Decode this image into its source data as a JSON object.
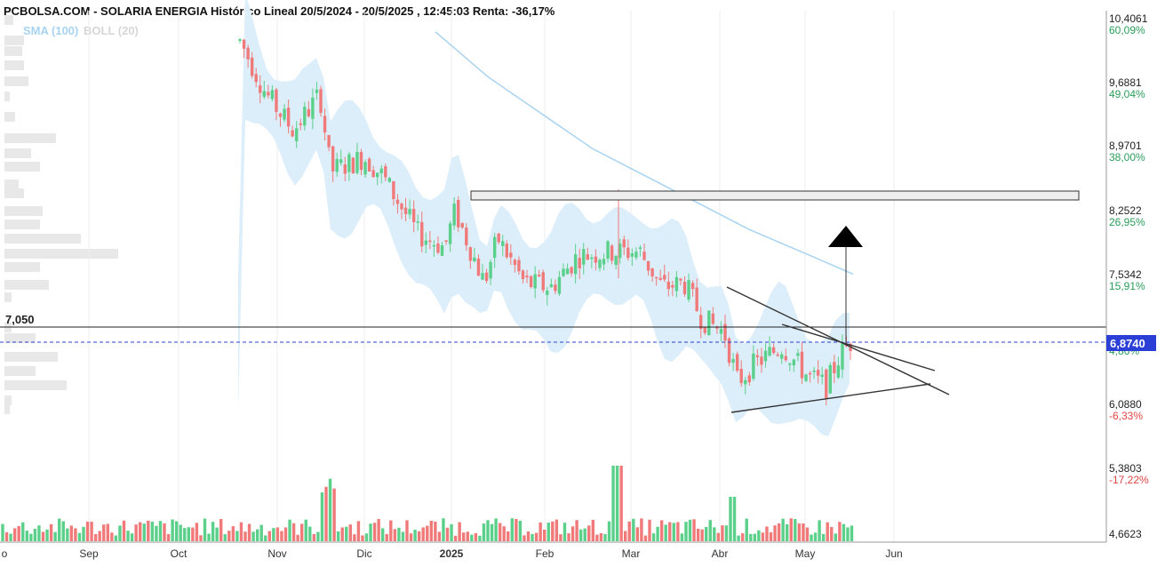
{
  "header": {
    "title": "PCBOLSA.COM - SOLARIA ENERGIA Histórico Lineal 20/5/2024 - 20/5/2025 , 12:45:03 Renta: -36,17%",
    "indicators": {
      "sma": "SMA (100)",
      "boll": "BOLL (20)"
    }
  },
  "colors": {
    "up": "#5bd08a",
    "down": "#f07a7a",
    "band": "#dceefa",
    "sma": "#a8d3f2",
    "current": "#2b3fd6"
  },
  "chart_data": {
    "type": "candlestick",
    "title": "PCBOLSA.COM - SOLARIA ENERGIA Histórico Lineal 20/5/2024 - 20/5/2025 , 12:45:03 Renta: -36,17%",
    "y_ticks": [
      {
        "price": "10,4061",
        "pct": "60,09%"
      },
      {
        "price": "9,6881",
        "pct": "49,04%"
      },
      {
        "price": "8,9701",
        "pct": "38,00%"
      },
      {
        "price": "8,2522",
        "pct": "26,95%"
      },
      {
        "price": "7,5342",
        "pct": "15,91%"
      },
      {
        "price": "6,8740",
        "pct": "4,86%"
      },
      {
        "price": "6,0880",
        "pct": "-6,33%"
      },
      {
        "price": "5,3803",
        "pct": "-17,22%"
      },
      {
        "price": "4,6623",
        "pct": ""
      }
    ],
    "x_ticks": [
      "o",
      "Sep",
      "Oct",
      "Nov",
      "Dic",
      "2025",
      "Feb",
      "Mar",
      "Abr",
      "May",
      "Jun"
    ],
    "ylim": [
      4.6623,
      10.4061
    ],
    "current_price": "6,8740",
    "resistance_level": "7,050",
    "resistance_zone": [
      8.35,
      8.45
    ],
    "triangle_target": 8.2,
    "series": [
      {
        "name": "SMA (100)",
        "values": [
          10.2,
          9.8,
          9.4,
          9.0,
          8.7,
          8.4,
          8.1,
          7.85,
          7.6
        ]
      },
      {
        "name": "Precio",
        "values": [
          10.2,
          9.1,
          8.8,
          7.9,
          7.6,
          7.75,
          7.6,
          6.4,
          6.87
        ]
      }
    ]
  }
}
